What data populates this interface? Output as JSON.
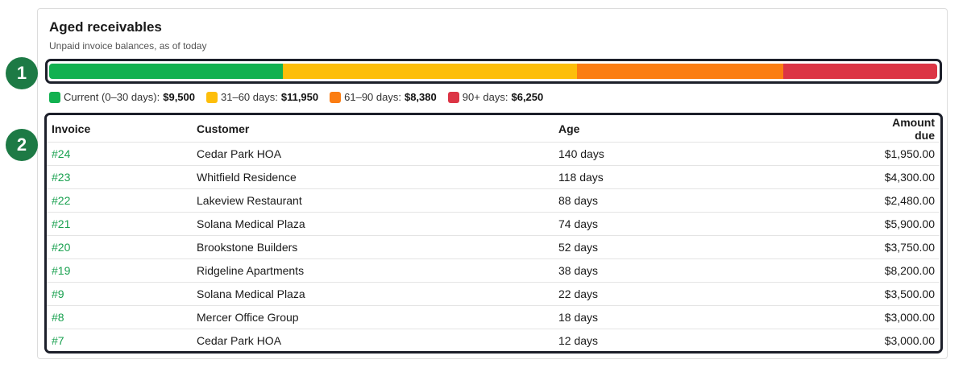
{
  "header": {
    "title": "Aged receivables",
    "subtitle": "Unpaid invoice balances, as of today"
  },
  "annotations": [
    "1",
    "2"
  ],
  "aging": {
    "labels": [
      "Current (0–30 days):",
      "31–60 days:",
      "61–90 days:",
      "90+ days:"
    ],
    "values": [
      9500,
      11950,
      8380,
      6250
    ],
    "value_labels": [
      "$9,500",
      "$11,950",
      "$8,380",
      "$6,250"
    ],
    "colors": [
      "#12b150",
      "#fdbe0a",
      "#fb7d12",
      "#dc3545"
    ]
  },
  "table": {
    "columns": [
      "Invoice",
      "Customer",
      "Age",
      "Amount due"
    ],
    "rows": [
      [
        "#24",
        "Cedar Park HOA",
        "140 days",
        "$1,950.00"
      ],
      [
        "#23",
        "Whitfield Residence",
        "118 days",
        "$4,300.00"
      ],
      [
        "#22",
        "Lakeview Restaurant",
        "88 days",
        "$2,480.00"
      ],
      [
        "#21",
        "Solana Medical Plaza",
        "74 days",
        "$5,900.00"
      ],
      [
        "#20",
        "Brookstone Builders",
        "52 days",
        "$3,750.00"
      ],
      [
        "#19",
        "Ridgeline Apartments",
        "38 days",
        "$8,200.00"
      ],
      [
        "#9",
        "Solana Medical Plaza",
        "22 days",
        "$3,500.00"
      ],
      [
        "#8",
        "Mercer Office Group",
        "18 days",
        "$3,000.00"
      ],
      [
        "#7",
        "Cedar Park HOA",
        "12 days",
        "$3,000.00"
      ]
    ]
  }
}
